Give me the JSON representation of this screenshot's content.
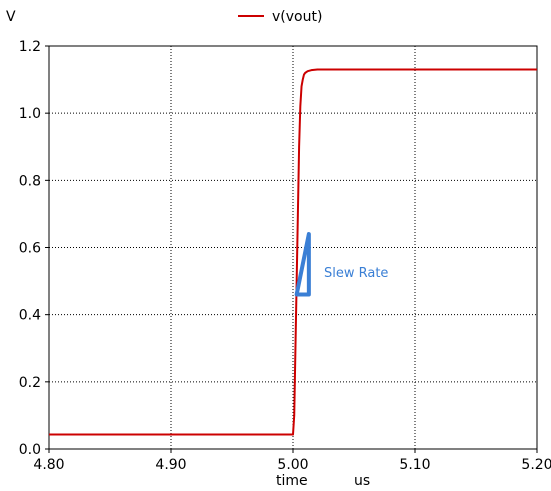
{
  "chart_data": {
    "type": "line",
    "ylabel_unit": "V",
    "xlabel": "time",
    "xunit": "us",
    "xlim": [
      4.8,
      5.2
    ],
    "ylim": [
      0.0,
      1.2
    ],
    "grid": true,
    "legend_position": "top-center",
    "x_tick_labels": [
      "4.80",
      "4.90",
      "5.00",
      "5.10",
      "5.20"
    ],
    "y_tick_labels": [
      "0.0",
      "0.2",
      "0.4",
      "0.6",
      "0.8",
      "1.0",
      "1.2"
    ],
    "series": [
      {
        "name": "v(vout)",
        "color": "#cc0000",
        "x": [
          4.8,
          4.9,
          5.0,
          5.001,
          5.002,
          5.003,
          5.004,
          5.005,
          5.006,
          5.007,
          5.008,
          5.009,
          5.01,
          5.012,
          5.015,
          5.02,
          5.1,
          5.2
        ],
        "y": [
          0.043,
          0.043,
          0.043,
          0.1,
          0.3,
          0.5,
          0.7,
          0.9,
          1.02,
          1.08,
          1.1,
          1.115,
          1.12,
          1.125,
          1.128,
          1.13,
          1.13,
          1.13
        ]
      }
    ],
    "annotation": {
      "text": "Slew Rate",
      "color": "#3a7fd5",
      "triangle": {
        "x": [
          5.003,
          5.013,
          5.013
        ],
        "y": [
          0.46,
          0.64,
          0.46
        ]
      }
    }
  }
}
